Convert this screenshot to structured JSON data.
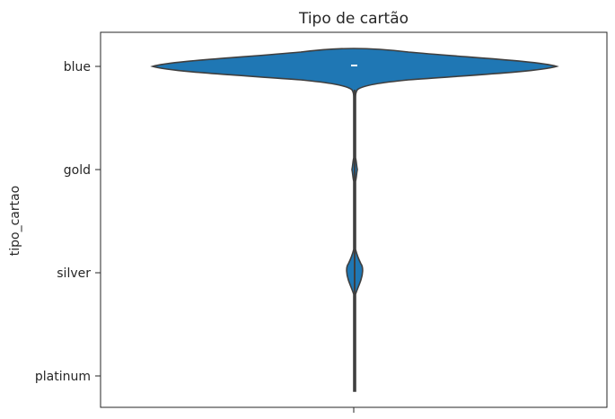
{
  "chart_data": {
    "type": "violin",
    "title": "Tipo de cartão",
    "xlabel": "",
    "ylabel": "tipo_cartao",
    "categories": [
      "blue",
      "gold",
      "silver",
      "platinum"
    ],
    "orientation": "horizontal-categories-on-y",
    "grid": false,
    "legend": "none",
    "color": "#1f77b4",
    "edge_color": "#3f3f3f"
  }
}
